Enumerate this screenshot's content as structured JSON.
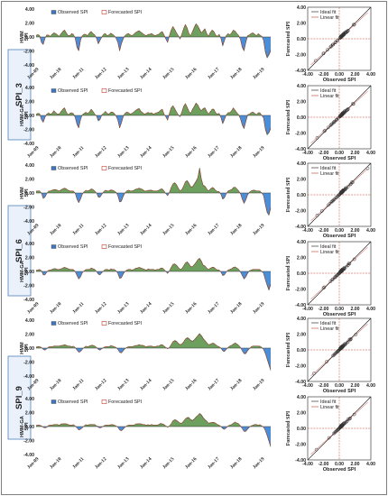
{
  "chart_data": {
    "type": "area",
    "time_ticks": [
      "Jan-09",
      "Jan-10",
      "Jan-11",
      "Jan-12",
      "Jan-13",
      "Jan-14",
      "Jan-15",
      "Jan-16",
      "Jan-17",
      "Jan-18",
      "Jan-19"
    ],
    "time_ylim": [
      -4,
      4
    ],
    "time_yticks": [
      "4.00",
      "2.00",
      "0.00",
      "-2.00",
      "-4.00"
    ],
    "scatter_ticks": [
      "-4.00",
      "-2.00",
      "0.00",
      "2.00",
      "4.00"
    ],
    "scatter_xlabel": "Observed SPI",
    "scatter_ylabel": "Forecasted SPI",
    "scatter_legend": [
      "Ideal fit",
      "Linear fit"
    ],
    "legend": {
      "observed": "Observed SPI",
      "forecasted": "Forecasted SPI"
    },
    "colors": {
      "observed_fill": "#4472c4",
      "observed_line": "#2e4d2e",
      "forecasted_line": "#c0392b",
      "positive_fill": "#6d9f5f",
      "negative_fill": "#4a8ed8"
    },
    "groups": [
      {
        "label": "SPI_3",
        "panels": [
          {
            "model": "HMM",
            "ylabel": "SPI",
            "series": [
              0.15,
              0.35,
              0.2,
              -0.8,
              -1.1,
              -0.2,
              0.3,
              0.2,
              0.1,
              0.4,
              0.6,
              0.5,
              0.3,
              0.1,
              0.4,
              0.8,
              1.0,
              0.6,
              0.2,
              0.2,
              0.5,
              0.3,
              -0.2,
              -1.5,
              -2.0,
              -0.5,
              0.2,
              0.4,
              0.3,
              0.2,
              0.6,
              0.8,
              0.5,
              0.3,
              -0.2,
              -1.0,
              -0.5,
              0.0,
              0.4,
              0.5,
              0.2,
              0.3,
              0.5,
              0.4,
              0.2,
              -0.2,
              -0.8,
              -2.0,
              -1.0,
              -0.3,
              0.2,
              0.4,
              0.5,
              0.3,
              0.2,
              0.4,
              0.6,
              0.8,
              0.9,
              0.7,
              0.5,
              0.3,
              0.2,
              0.3,
              0.4,
              0.5,
              0.3,
              0.2,
              0.3,
              0.4,
              0.6,
              0.8,
              0.3,
              -0.3,
              -0.8,
              0.2,
              1.0,
              1.5,
              1.1,
              0.6,
              0.2,
              -0.3,
              0.4,
              1.2,
              1.8,
              1.3,
              0.5,
              0.2,
              0.8,
              1.4,
              1.9,
              1.6,
              1.1,
              0.6,
              0.9,
              1.2,
              0.5,
              0.1,
              0.6,
              1.0,
              0.8,
              0.3,
              0.1,
              0.4,
              -0.2,
              -1.3,
              -0.5,
              0.2,
              0.5,
              0.3,
              0.6,
              1.0,
              0.8,
              0.5,
              0.2,
              -0.4,
              -1.5,
              -2.0,
              -0.8,
              0.1,
              0.3,
              0.5,
              0.6,
              0.4,
              0.2,
              0.5,
              0.2,
              0.1,
              -0.5,
              -2.2,
              -3.0,
              -2.6,
              -2.0
            ]
          },
          {
            "model": "HMM-GA",
            "ylabel": "SPI",
            "series": [
              0.1,
              0.3,
              0.25,
              -0.6,
              -1.0,
              -0.3,
              0.2,
              0.3,
              0.2,
              0.3,
              0.7,
              0.4,
              0.2,
              0.2,
              0.5,
              0.9,
              1.1,
              0.5,
              0.1,
              0.3,
              0.4,
              0.2,
              -0.3,
              -1.3,
              -1.8,
              -0.6,
              0.1,
              0.3,
              0.4,
              0.3,
              0.5,
              0.9,
              0.6,
              0.2,
              -0.1,
              -0.8,
              -0.6,
              0.1,
              0.3,
              0.6,
              0.3,
              0.2,
              0.4,
              0.5,
              0.3,
              -0.1,
              -0.7,
              -1.8,
              -1.1,
              -0.2,
              0.3,
              0.5,
              0.4,
              0.2,
              0.3,
              0.5,
              0.7,
              0.9,
              1.0,
              0.6,
              0.4,
              0.2,
              0.3,
              0.4,
              0.3,
              0.4,
              0.2,
              0.3,
              0.4,
              0.5,
              0.7,
              0.9,
              0.2,
              -0.2,
              -0.7,
              0.3,
              1.1,
              1.4,
              1.0,
              0.5,
              0.1,
              -0.2,
              0.5,
              1.3,
              1.7,
              1.2,
              0.6,
              0.3,
              0.9,
              1.3,
              1.8,
              1.5,
              1.0,
              0.7,
              1.0,
              1.1,
              0.6,
              0.2,
              0.5,
              0.9,
              0.9,
              0.4,
              0.2,
              0.3,
              -0.3,
              -1.2,
              -0.6,
              0.1,
              0.4,
              0.4,
              0.7,
              1.1,
              0.7,
              0.4,
              0.1,
              -0.5,
              -1.4,
              -1.9,
              -0.9,
              0.0,
              0.2,
              0.4,
              0.5,
              0.3,
              0.1,
              0.4,
              0.3,
              0.0,
              -0.4,
              -2.0,
              -2.8,
              -2.5,
              -1.9
            ]
          }
        ]
      },
      {
        "label": "SPI_6",
        "panels": [
          {
            "model": "HMM",
            "ylabel": "SPI",
            "series": [
              0.2,
              0.3,
              0.3,
              0.0,
              -0.8,
              -0.6,
              -0.1,
              0.2,
              0.3,
              0.4,
              0.5,
              0.5,
              0.4,
              0.3,
              0.4,
              0.6,
              0.7,
              0.6,
              0.4,
              0.3,
              0.3,
              0.2,
              0.0,
              -0.9,
              -1.4,
              -0.9,
              -0.2,
              0.2,
              0.3,
              0.3,
              0.4,
              0.6,
              0.5,
              0.3,
              0.0,
              -0.6,
              -0.6,
              -0.2,
              0.2,
              0.4,
              0.3,
              0.3,
              0.4,
              0.4,
              0.3,
              0.1,
              -0.4,
              -1.3,
              -1.2,
              -0.5,
              0.0,
              0.3,
              0.4,
              0.3,
              0.3,
              0.4,
              0.5,
              0.6,
              0.7,
              0.6,
              0.5,
              0.3,
              0.3,
              0.3,
              0.4,
              0.4,
              0.3,
              0.3,
              0.3,
              0.4,
              0.5,
              0.6,
              0.3,
              -0.1,
              -0.4,
              0.1,
              0.8,
              1.3,
              1.5,
              1.2,
              0.7,
              0.3,
              0.5,
              1.0,
              1.6,
              1.8,
              1.4,
              0.9,
              0.9,
              1.3,
              1.7,
              2.2,
              3.6,
              2.0,
              1.1,
              1.0,
              0.6,
              0.3,
              0.5,
              0.8,
              0.7,
              0.4,
              0.2,
              0.2,
              -0.2,
              -0.9,
              -0.7,
              -0.1,
              0.3,
              0.4,
              0.5,
              0.8,
              0.8,
              0.6,
              0.3,
              -0.1,
              -0.9,
              -1.5,
              -1.0,
              -0.3,
              0.1,
              0.3,
              0.4,
              0.4,
              0.3,
              0.3,
              0.2,
              0.0,
              -0.4,
              -1.7,
              -2.8,
              -3.2,
              -2.2
            ]
          },
          {
            "model": "HMM-GA",
            "ylabel": "SPI",
            "series": [
              0.1,
              0.2,
              0.3,
              0.1,
              -0.5,
              -0.5,
              -0.1,
              0.1,
              0.2,
              0.3,
              0.4,
              0.4,
              0.3,
              0.3,
              0.3,
              0.5,
              0.6,
              0.5,
              0.4,
              0.3,
              0.3,
              0.2,
              0.0,
              -0.6,
              -1.1,
              -0.8,
              -0.2,
              0.1,
              0.2,
              0.3,
              0.3,
              0.5,
              0.4,
              0.3,
              0.0,
              -0.4,
              -0.5,
              -0.2,
              0.1,
              0.3,
              0.3,
              0.2,
              0.3,
              0.3,
              0.3,
              0.1,
              -0.3,
              -1.0,
              -0.9,
              -0.4,
              0.0,
              0.2,
              0.3,
              0.3,
              0.2,
              0.3,
              0.4,
              0.5,
              0.6,
              0.5,
              0.4,
              0.3,
              0.2,
              0.3,
              0.3,
              0.3,
              0.3,
              0.2,
              0.3,
              0.3,
              0.4,
              0.5,
              0.3,
              0.0,
              -0.3,
              0.1,
              0.6,
              1.0,
              1.1,
              0.9,
              0.6,
              0.3,
              0.4,
              0.8,
              1.2,
              1.4,
              1.1,
              0.7,
              0.7,
              1.0,
              1.3,
              1.7,
              1.9,
              1.5,
              0.9,
              0.8,
              0.5,
              0.3,
              0.4,
              0.6,
              0.6,
              0.4,
              0.2,
              0.2,
              -0.1,
              -0.6,
              -0.5,
              -0.1,
              0.2,
              0.3,
              0.4,
              0.6,
              0.6,
              0.5,
              0.3,
              -0.1,
              -0.6,
              -1.1,
              -0.8,
              -0.3,
              0.1,
              0.2,
              0.3,
              0.3,
              0.3,
              0.3,
              0.2,
              0.0,
              -0.3,
              -1.2,
              -2.0,
              -2.7,
              -1.9
            ]
          }
        ]
      },
      {
        "label": "SPI_9",
        "panels": [
          {
            "model": "HMM",
            "ylabel": "SPI",
            "series": [
              0.1,
              0.2,
              0.2,
              0.1,
              -0.2,
              -0.3,
              -0.1,
              0.1,
              0.2,
              0.2,
              0.3,
              0.3,
              0.3,
              0.3,
              0.3,
              0.4,
              0.5,
              0.4,
              0.3,
              0.3,
              0.2,
              0.2,
              0.1,
              -0.3,
              -0.6,
              -0.5,
              -0.2,
              0.1,
              0.2,
              0.2,
              0.3,
              0.4,
              0.4,
              0.3,
              0.1,
              -0.2,
              -0.3,
              -0.1,
              0.1,
              0.2,
              0.2,
              0.2,
              0.3,
              0.3,
              0.2,
              0.1,
              -0.2,
              -0.6,
              -0.7,
              -0.4,
              -0.1,
              0.1,
              0.2,
              0.2,
              0.2,
              0.3,
              0.3,
              0.4,
              0.5,
              0.4,
              0.4,
              0.3,
              0.2,
              0.2,
              0.3,
              0.3,
              0.2,
              0.2,
              0.3,
              0.3,
              0.4,
              0.5,
              0.3,
              0.1,
              -0.1,
              0.1,
              0.5,
              0.9,
              1.1,
              1.0,
              0.7,
              0.5,
              0.6,
              0.9,
              1.3,
              1.5,
              1.4,
              1.1,
              1.0,
              1.2,
              1.5,
              1.8,
              2.1,
              1.8,
              1.4,
              1.1,
              0.8,
              0.5,
              0.5,
              0.7,
              0.7,
              0.5,
              0.3,
              0.2,
              0.0,
              -0.4,
              -0.5,
              -0.2,
              0.1,
              0.3,
              0.4,
              0.6,
              0.7,
              0.6,
              0.4,
              0.1,
              -0.4,
              -0.8,
              -0.8,
              -0.4,
              -0.1,
              0.2,
              0.3,
              0.3,
              0.3,
              0.3,
              0.2,
              0.1,
              -0.2,
              -0.8,
              -1.6,
              -2.4,
              -3.2
            ]
          },
          {
            "model": "HMM-GA",
            "ylabel": "SPI",
            "series": [
              0.1,
              0.2,
              0.2,
              0.1,
              -0.1,
              -0.2,
              -0.1,
              0.1,
              0.2,
              0.2,
              0.3,
              0.3,
              0.3,
              0.2,
              0.3,
              0.4,
              0.4,
              0.4,
              0.3,
              0.2,
              0.2,
              0.2,
              0.1,
              -0.2,
              -0.5,
              -0.4,
              -0.2,
              0.1,
              0.2,
              0.2,
              0.3,
              0.3,
              0.3,
              0.3,
              0.1,
              -0.1,
              -0.2,
              -0.1,
              0.1,
              0.2,
              0.2,
              0.2,
              0.2,
              0.3,
              0.2,
              0.1,
              -0.1,
              -0.5,
              -0.6,
              -0.4,
              -0.1,
              0.1,
              0.2,
              0.2,
              0.2,
              0.2,
              0.3,
              0.4,
              0.4,
              0.4,
              0.3,
              0.3,
              0.2,
              0.2,
              0.2,
              0.3,
              0.2,
              0.2,
              0.2,
              0.3,
              0.4,
              0.4,
              0.3,
              0.1,
              -0.1,
              0.1,
              0.4,
              0.8,
              1.0,
              0.9,
              0.7,
              0.5,
              0.5,
              0.8,
              1.1,
              1.3,
              1.3,
              1.0,
              0.9,
              1.1,
              1.4,
              1.6,
              1.9,
              1.7,
              1.3,
              1.0,
              0.8,
              0.5,
              0.5,
              0.6,
              0.6,
              0.5,
              0.3,
              0.2,
              0.0,
              -0.3,
              -0.4,
              -0.2,
              0.1,
              0.2,
              0.3,
              0.5,
              0.6,
              0.5,
              0.4,
              0.1,
              -0.3,
              -0.7,
              -0.7,
              -0.4,
              -0.1,
              0.1,
              0.2,
              0.3,
              0.3,
              0.2,
              0.2,
              0.1,
              -0.1,
              -0.6,
              -1.3,
              -2.1,
              -2.9
            ]
          }
        ]
      }
    ]
  }
}
